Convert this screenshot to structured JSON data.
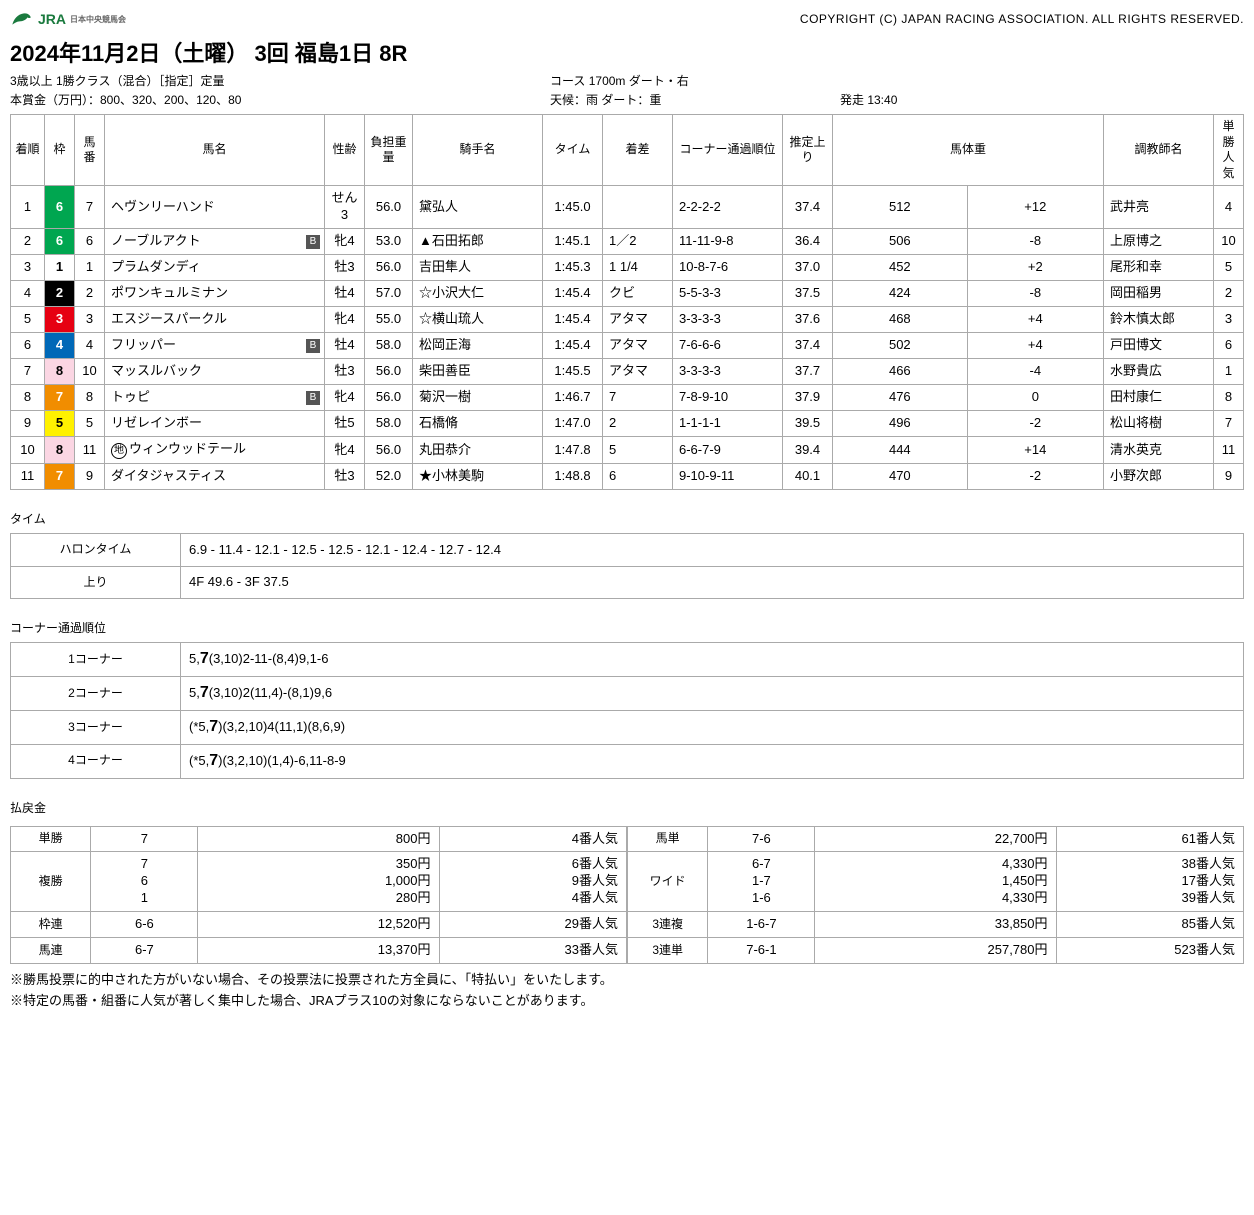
{
  "header": {
    "copyright": "COPYRIGHT (C) JAPAN RACING ASSOCIATION. ALL RIGHTS RESERVED.",
    "logo_text": "JRA",
    "logo_sub": "日本中央競馬会"
  },
  "race": {
    "title": "2024年11月2日（土曜） 3回 福島1日 8R",
    "class": "3歳以上 1勝クラス（混合）［指定］定量",
    "course": "コース 1700m ダート・右",
    "prize": "本賞金（万円）：800、320、200、120、80",
    "weather": "天候：雨 ダート：重",
    "start": "発走 13:40"
  },
  "columns": [
    "着順",
    "枠",
    "馬番",
    "馬名",
    "性齢",
    "負担重量",
    "騎手名",
    "タイム",
    "着差",
    "コーナー通過順位",
    "推定上り",
    "馬体重",
    "",
    "調教師名",
    "単勝人気"
  ],
  "rows": [
    {
      "rank": "1",
      "waku": "6",
      "wclass": "w6",
      "num": "7",
      "name": "ヘヴンリーハンド",
      "blinker": false,
      "local": false,
      "sex": "せん3",
      "wt": "56.0",
      "jockey": "黛弘人",
      "time": "1:45.0",
      "margin": "",
      "corner": "2-2-2-2",
      "agari": "37.4",
      "bwt": "512",
      "bdiff": "+12",
      "trainer": "武井亮",
      "pop": "4"
    },
    {
      "rank": "2",
      "waku": "6",
      "wclass": "w6",
      "num": "6",
      "name": "ノーブルアクト",
      "blinker": true,
      "local": false,
      "sex": "牝4",
      "wt": "53.0",
      "jockey": "▲石田拓郎",
      "time": "1:45.1",
      "margin": "1／2",
      "corner": "11-11-9-8",
      "agari": "36.4",
      "bwt": "506",
      "bdiff": "-8",
      "trainer": "上原博之",
      "pop": "10"
    },
    {
      "rank": "3",
      "waku": "1",
      "wclass": "w1",
      "num": "1",
      "name": "プラムダンディ",
      "blinker": false,
      "local": false,
      "sex": "牡3",
      "wt": "56.0",
      "jockey": "吉田隼人",
      "time": "1:45.3",
      "margin": "1 1/4",
      "corner": "10-8-7-6",
      "agari": "37.0",
      "bwt": "452",
      "bdiff": "+2",
      "trainer": "尾形和幸",
      "pop": "5"
    },
    {
      "rank": "4",
      "waku": "2",
      "wclass": "w2",
      "num": "2",
      "name": "ポワンキュルミナン",
      "blinker": false,
      "local": false,
      "sex": "牡4",
      "wt": "57.0",
      "jockey": "☆小沢大仁",
      "time": "1:45.4",
      "margin": "クビ",
      "corner": "5-5-3-3",
      "agari": "37.5",
      "bwt": "424",
      "bdiff": "-8",
      "trainer": "岡田稲男",
      "pop": "2"
    },
    {
      "rank": "5",
      "waku": "3",
      "wclass": "w3",
      "num": "3",
      "name": "エスジースパークル",
      "blinker": false,
      "local": false,
      "sex": "牝4",
      "wt": "55.0",
      "jockey": "☆横山琉人",
      "time": "1:45.4",
      "margin": "アタマ",
      "corner": "3-3-3-3",
      "agari": "37.6",
      "bwt": "468",
      "bdiff": "+4",
      "trainer": "鈴木慎太郎",
      "pop": "3"
    },
    {
      "rank": "6",
      "waku": "4",
      "wclass": "w4",
      "num": "4",
      "name": "フリッパー",
      "blinker": true,
      "local": false,
      "sex": "牡4",
      "wt": "58.0",
      "jockey": "松岡正海",
      "time": "1:45.4",
      "margin": "アタマ",
      "corner": "7-6-6-6",
      "agari": "37.4",
      "bwt": "502",
      "bdiff": "+4",
      "trainer": "戸田博文",
      "pop": "6"
    },
    {
      "rank": "7",
      "waku": "8",
      "wclass": "w8",
      "num": "10",
      "name": "マッスルバック",
      "blinker": false,
      "local": false,
      "sex": "牡3",
      "wt": "56.0",
      "jockey": "柴田善臣",
      "time": "1:45.5",
      "margin": "アタマ",
      "corner": "3-3-3-3",
      "agari": "37.7",
      "bwt": "466",
      "bdiff": "-4",
      "trainer": "水野貴広",
      "pop": "1"
    },
    {
      "rank": "8",
      "waku": "7",
      "wclass": "w7",
      "num": "8",
      "name": "トゥピ",
      "blinker": true,
      "local": false,
      "sex": "牝4",
      "wt": "56.0",
      "jockey": "菊沢一樹",
      "time": "1:46.7",
      "margin": "7",
      "corner": "7-8-9-10",
      "agari": "37.9",
      "bwt": "476",
      "bdiff": "0",
      "trainer": "田村康仁",
      "pop": "8"
    },
    {
      "rank": "9",
      "waku": "5",
      "wclass": "w5",
      "num": "5",
      "name": "リゼレインボー",
      "blinker": false,
      "local": false,
      "sex": "牡5",
      "wt": "58.0",
      "jockey": "石橋脩",
      "time": "1:47.0",
      "margin": "2",
      "corner": "1-1-1-1",
      "agari": "39.5",
      "bwt": "496",
      "bdiff": "-2",
      "trainer": "松山将樹",
      "pop": "7"
    },
    {
      "rank": "10",
      "waku": "8",
      "wclass": "w8",
      "num": "11",
      "name": "ウィンウッドテール",
      "blinker": false,
      "local": true,
      "sex": "牝4",
      "wt": "56.0",
      "jockey": "丸田恭介",
      "time": "1:47.8",
      "margin": "5",
      "corner": "6-6-7-9",
      "agari": "39.4",
      "bwt": "444",
      "bdiff": "+14",
      "trainer": "清水英克",
      "pop": "11"
    },
    {
      "rank": "11",
      "waku": "7",
      "wclass": "w7",
      "num": "9",
      "name": "ダイタジャスティス",
      "blinker": false,
      "local": false,
      "sex": "牡3",
      "wt": "52.0",
      "jockey": "★小林美駒",
      "time": "1:48.8",
      "margin": "6",
      "corner": "9-10-9-11",
      "agari": "40.1",
      "bwt": "470",
      "bdiff": "-2",
      "trainer": "小野次郎",
      "pop": "9"
    }
  ],
  "sections": {
    "time": "タイム",
    "corner": "コーナー通過順位",
    "payout": "払戻金"
  },
  "time_rows": [
    {
      "label": "ハロンタイム",
      "value": "6.9 - 11.4 - 12.1 - 12.5 - 12.5 - 12.1 - 12.4 - 12.7 - 12.4"
    },
    {
      "label": "上り",
      "value": "4F 49.6 - 3F 37.5"
    }
  ],
  "corner_rows": [
    {
      "label": "1コーナー",
      "pre": "5,",
      "win": "7",
      "post": "(3,10)2-11-(8,4)9,1-6"
    },
    {
      "label": "2コーナー",
      "pre": "5,",
      "win": "7",
      "post": "(3,10)2(11,4)-(8,1)9,6"
    },
    {
      "label": "3コーナー",
      "pre": "(*5,",
      "win": "7",
      "post": ")(3,2,10)4(11,1)(8,6,9)"
    },
    {
      "label": "4コーナー",
      "pre": "(*5,",
      "win": "7",
      "post": ")(3,2,10)(1,4)-6,11-8-9"
    }
  ],
  "payout_left": [
    {
      "type": "単勝",
      "combo": "7",
      "yen": "800円",
      "pop": "4番人気"
    },
    {
      "type": "複勝",
      "combo": "7\n6\n1",
      "yen": "350円\n1,000円\n280円",
      "pop": "6番人気\n9番人気\n4番人気"
    },
    {
      "type": "枠連",
      "combo": "6-6",
      "yen": "12,520円",
      "pop": "29番人気"
    },
    {
      "type": "馬連",
      "combo": "6-7",
      "yen": "13,370円",
      "pop": "33番人気"
    }
  ],
  "payout_right": [
    {
      "type": "馬単",
      "combo": "7-6",
      "yen": "22,700円",
      "pop": "61番人気"
    },
    {
      "type": "ワイド",
      "combo": "6-7\n1-7\n1-6",
      "yen": "4,330円\n1,450円\n4,330円",
      "pop": "38番人気\n17番人気\n39番人気"
    },
    {
      "type": "3連複",
      "combo": "1-6-7",
      "yen": "33,850円",
      "pop": "85番人気"
    },
    {
      "type": "3連単",
      "combo": "7-6-1",
      "yen": "257,780円",
      "pop": "523番人気"
    }
  ],
  "notes": [
    "※勝馬投票に的中された方がいない場合、その投票法に投票された方全員に、「特払い」をいたします。",
    "※特定の馬番・組番に人気が著しく集中した場合、JRAプラス10の対象にならないことがあります。"
  ]
}
